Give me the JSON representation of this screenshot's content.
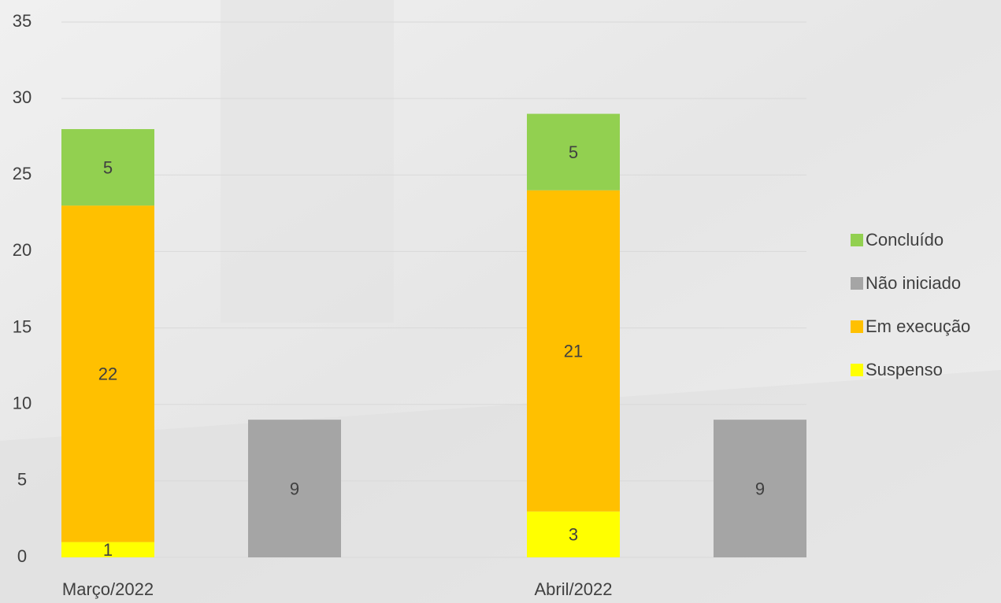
{
  "chart_data": {
    "type": "bar",
    "categories": [
      "Março/2022",
      "Abril/2022"
    ],
    "series": [
      {
        "name": "Concluído",
        "color": "#92d050",
        "stack": 0,
        "values": [
          5,
          5
        ]
      },
      {
        "name": "Não iniciado",
        "color": "#a5a5a5",
        "stack": 1,
        "values": [
          9,
          9
        ]
      },
      {
        "name": "Em execução",
        "color": "#ffc000",
        "stack": 0,
        "values": [
          22,
          21
        ]
      },
      {
        "name": "Suspenso",
        "color": "#ffff00",
        "stack": 0,
        "values": [
          1,
          3
        ]
      }
    ],
    "ylim": [
      0,
      35
    ],
    "yticks": [
      0,
      5,
      10,
      15,
      20,
      25,
      30,
      35
    ],
    "grid": true,
    "legend": "right"
  }
}
